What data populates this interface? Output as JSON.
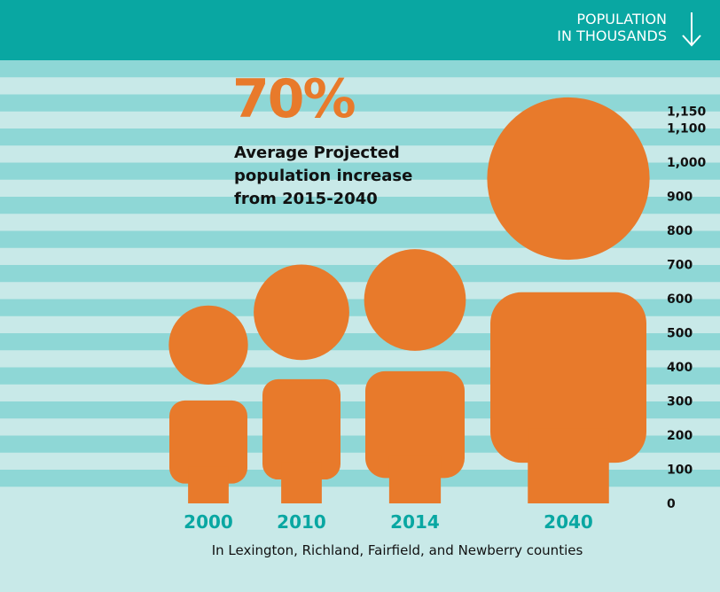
{
  "header": {
    "title_line1": "POPULATION",
    "title_line2": "IN THOUSANDS",
    "icon": "arrow-down-icon",
    "background": "#09a7a2"
  },
  "highlight": {
    "value": "70%",
    "caption_lines": [
      "Average Projected",
      "population increase",
      "from 2015-2040"
    ]
  },
  "footnote": "In Lexington, Richland, Fairfield, and Newberry counties",
  "colors": {
    "figure": "#e87a2b",
    "stripe_dark": "#8ed7d6",
    "stripe_light": "#c8e9e8",
    "category_label": "#09a7a2",
    "tick_label": "#111111"
  },
  "chart_data": {
    "type": "bar",
    "title": "POPULATION IN THOUSANDS",
    "categories": [
      "2000",
      "2010",
      "2014",
      "2040"
    ],
    "values": [
      580,
      700,
      745,
      1190
    ],
    "y_ticks": [
      "0",
      "100",
      "200",
      "300",
      "400",
      "500",
      "600",
      "700",
      "800",
      "900",
      "1,000",
      "1,100",
      "1,150"
    ],
    "ylim": [
      0,
      1150
    ],
    "grid": "horizontal stripes",
    "mark": "human figure pictograph"
  }
}
